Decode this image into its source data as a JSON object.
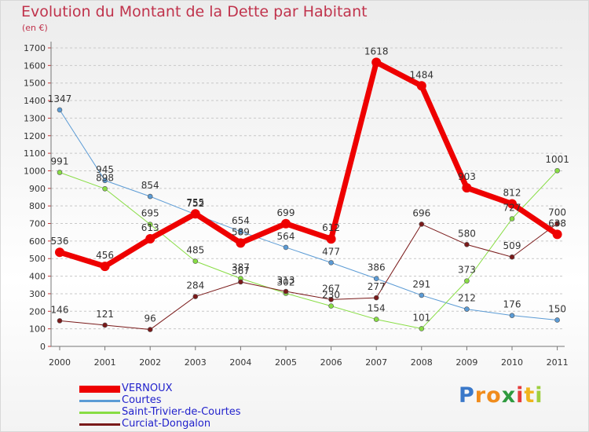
{
  "chart_data": {
    "type": "line",
    "title": "Evolution du Montant de la Dette par Habitant",
    "subtitle": "(en €)",
    "x": [
      "2000",
      "2001",
      "2002",
      "2003",
      "2004",
      "2005",
      "2006",
      "2007",
      "2008",
      "2009",
      "2010",
      "2011"
    ],
    "ylim": [
      0,
      1700
    ],
    "yticks": [
      0,
      100,
      200,
      300,
      400,
      500,
      600,
      700,
      800,
      900,
      1000,
      1100,
      1200,
      1300,
      1400,
      1500,
      1600,
      1700
    ],
    "grid": "horizontal dashed",
    "legend_position": "bottom-left",
    "series": [
      {
        "name": "VERNOUX",
        "color": "#ee0000",
        "width": 7,
        "marker": 6,
        "values": [
          536,
          456,
          613,
          755,
          589,
          699,
          612,
          1618,
          1484,
          903,
          812,
          638
        ]
      },
      {
        "name": "Courtes",
        "color": "#5b9bd5",
        "width": 1,
        "marker": 3,
        "values": [
          1347,
          945,
          854,
          752,
          654,
          564,
          477,
          386,
          291,
          212,
          176,
          150
        ]
      },
      {
        "name": "Saint-Trivier-de-Courtes",
        "color": "#88dd44",
        "width": 1,
        "marker": 3,
        "values": [
          991,
          898,
          695,
          485,
          387,
          302,
          230,
          154,
          101,
          373,
          727,
          1001
        ]
      },
      {
        "name": "Curciat-Dongalon",
        "color": "#7a1a1a",
        "width": 1,
        "marker": 3,
        "values": [
          146,
          121,
          96,
          284,
          367,
          313,
          267,
          277,
          696,
          580,
          509,
          700
        ]
      }
    ]
  },
  "brand": {
    "letters": [
      "P",
      "r",
      "o",
      "x",
      "i",
      "t",
      "i"
    ],
    "colors": [
      "#3a78c9",
      "#f08c1c",
      "#f08c1c",
      "#2f9a3f",
      "#e53c3c",
      "#f0b41c",
      "#9fcf3f"
    ]
  }
}
